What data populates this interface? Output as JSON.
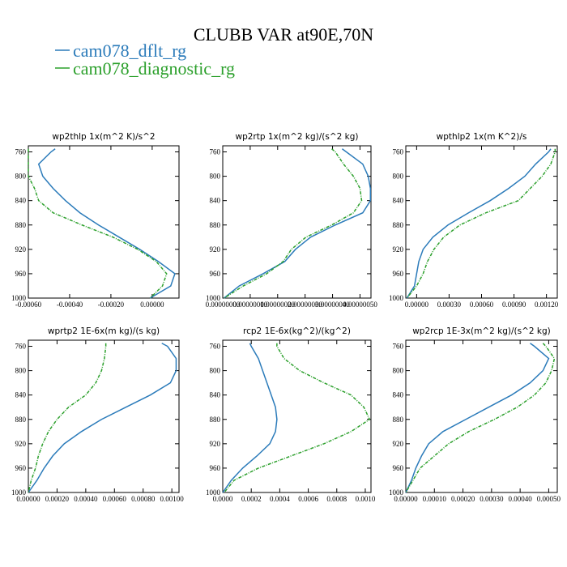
{
  "title": "CLUBB VAR at90E,70N",
  "chart_data": [
    {
      "type": "line",
      "title": "wp2thlp  1x(m^2 K)/s^2",
      "y": [
        755,
        760,
        780,
        800,
        820,
        840,
        860,
        880,
        900,
        920,
        940,
        960,
        980,
        1000
      ],
      "ylim": [
        1000,
        750
      ],
      "yticks": [
        760,
        800,
        840,
        880,
        920,
        960,
        1000
      ],
      "xlim": [
        -0.0006,
        0.00013
      ],
      "xticks": [
        {
          "value": -0.0006,
          "label": "-0.00060"
        },
        {
          "value": -0.0004,
          "label": "-0.00040"
        },
        {
          "value": -0.0002,
          "label": "-0.00020"
        },
        {
          "value": 0,
          "label": "0.00000"
        }
      ],
      "series": [
        {
          "name": "cam078_dflt_rg",
          "color": "#2b7bba",
          "line_style": "solid",
          "values": [
            -0.00047,
            -0.00049,
            -0.00055,
            -0.00053,
            -0.00048,
            -0.00042,
            -0.00035,
            -0.00026,
            -0.00016,
            -6e-05,
            3e-05,
            0.00011,
            9e-05,
            -1e-05
          ]
        },
        {
          "name": "cam078_diagnostic_rg",
          "color": "#2ca02c",
          "line_style": "dashed",
          "values": [
            -0.0006,
            -0.0006,
            -0.0006,
            -0.0006,
            -0.00057,
            -0.00055,
            -0.00048,
            -0.00034,
            -0.00019,
            -7e-05,
            2e-05,
            7e-05,
            5e-05,
            -1e-05
          ]
        }
      ]
    },
    {
      "type": "line",
      "title": "wp2rtp  1x(m^2 kg)/(s^2 kg)",
      "y": [
        755,
        760,
        780,
        800,
        820,
        840,
        860,
        880,
        900,
        920,
        940,
        960,
        980,
        1000
      ],
      "ylim": [
        1000,
        750
      ],
      "yticks": [
        760,
        800,
        840,
        880,
        920,
        960,
        1000
      ],
      "xlim": [
        0,
        5.4e-07
      ],
      "xticks": [
        {
          "value": 0,
          "label": "0.00000000"
        },
        {
          "value": 1e-07,
          "label": "0.00000010"
        },
        {
          "value": 2e-07,
          "label": "0.00000020"
        },
        {
          "value": 3e-07,
          "label": "0.00000030"
        },
        {
          "value": 4e-07,
          "label": "0.00000040"
        },
        {
          "value": 5e-07,
          "label": "0.00000050"
        }
      ],
      "series": [
        {
          "name": "cam078_dflt_rg",
          "color": "#2b7bba",
          "line_style": "solid",
          "values": [
            4.35e-07,
            4.5e-07,
            5.1e-07,
            5.3e-07,
            5.38e-07,
            5.38e-07,
            5.1e-07,
            4.1e-07,
            3.2e-07,
            2.65e-07,
            2.26e-07,
            1.47e-07,
            6e-08,
            5e-09
          ]
        },
        {
          "name": "cam078_diagnostic_rg",
          "color": "#2ca02c",
          "line_style": "dashed",
          "values": [
            3.97e-07,
            4.1e-07,
            4.4e-07,
            4.76e-07,
            5e-07,
            5.06e-07,
            4.76e-07,
            3.97e-07,
            3.03e-07,
            2.5e-07,
            2.2e-07,
            1.6e-07,
            7.5e-08,
            5e-09
          ]
        }
      ]
    },
    {
      "type": "line",
      "title": "wpthlp2  1x(m K^2)/s",
      "y": [
        755,
        760,
        780,
        800,
        820,
        840,
        860,
        880,
        900,
        920,
        940,
        960,
        980,
        1000
      ],
      "ylim": [
        1000,
        750
      ],
      "yticks": [
        760,
        800,
        840,
        880,
        920,
        960,
        1000
      ],
      "xlim": [
        -0.0001,
        0.0013
      ],
      "xticks": [
        {
          "value": 0,
          "label": "0.00000"
        },
        {
          "value": 0.0003,
          "label": "0.00030"
        },
        {
          "value": 0.0006,
          "label": "0.00060"
        },
        {
          "value": 0.0009,
          "label": "0.00090"
        },
        {
          "value": 0.0012,
          "label": "0.00120"
        }
      ],
      "series": [
        {
          "name": "cam078_dflt_rg",
          "color": "#2b7bba",
          "line_style": "solid",
          "values": [
            0.00124,
            0.00122,
            0.0011,
            0.001,
            0.00085,
            0.00068,
            0.00048,
            0.00029,
            0.00015,
            6e-05,
            2e-05,
            0,
            -2e-05,
            -9e-05
          ]
        },
        {
          "name": "cam078_diagnostic_rg",
          "color": "#2ca02c",
          "line_style": "dashed",
          "values": [
            0.00128,
            0.00128,
            0.00124,
            0.00116,
            0.00105,
            0.00094,
            0.00064,
            0.0004,
            0.00025,
            0.00016,
            0.0001,
            6e-05,
            0,
            -9e-05
          ]
        }
      ]
    },
    {
      "type": "line",
      "title": "wprtp2  1E-6x(m kg)/(s kg)",
      "y": [
        755,
        760,
        780,
        800,
        820,
        840,
        860,
        880,
        900,
        920,
        940,
        960,
        980,
        1000
      ],
      "ylim": [
        1000,
        750
      ],
      "yticks": [
        760,
        800,
        840,
        880,
        920,
        960,
        1000
      ],
      "xlim": [
        0,
        0.00105
      ],
      "xticks": [
        {
          "value": 0,
          "label": "0.00000"
        },
        {
          "value": 0.0002,
          "label": "0.00020"
        },
        {
          "value": 0.0004,
          "label": "0.00040"
        },
        {
          "value": 0.0006,
          "label": "0.00060"
        },
        {
          "value": 0.0008,
          "label": "0.00080"
        },
        {
          "value": 0.001,
          "label": "0.00100"
        }
      ],
      "series": [
        {
          "name": "cam078_dflt_rg",
          "color": "#2b7bba",
          "line_style": "solid",
          "values": [
            0.00093,
            0.00097,
            0.00103,
            0.00103,
            0.00099,
            0.00085,
            0.00068,
            0.00051,
            0.00037,
            0.00025,
            0.00017,
            0.00011,
            6e-05,
            0
          ]
        },
        {
          "name": "cam078_diagnostic_rg",
          "color": "#2ca02c",
          "line_style": "dashed",
          "values": [
            0.00054,
            0.00054,
            0.00053,
            0.00051,
            0.00047,
            0.0004,
            0.00028,
            0.0002,
            0.00014,
            0.0001,
            7e-05,
            5e-05,
            2e-05,
            0
          ]
        }
      ]
    },
    {
      "type": "line",
      "title": "rcp2  1E-6x(kg^2)/(kg^2)",
      "y": [
        755,
        760,
        780,
        800,
        820,
        840,
        860,
        880,
        900,
        920,
        940,
        960,
        980,
        1000
      ],
      "ylim": [
        1000,
        750
      ],
      "yticks": [
        760,
        800,
        840,
        880,
        920,
        960,
        1000
      ],
      "xlim": [
        0,
        0.00104
      ],
      "xticks": [
        {
          "value": 0,
          "label": "0.0000"
        },
        {
          "value": 0.0002,
          "label": "0.0002"
        },
        {
          "value": 0.0004,
          "label": "0.0004"
        },
        {
          "value": 0.0006,
          "label": "0.0006"
        },
        {
          "value": 0.0008,
          "label": "0.0008"
        },
        {
          "value": 0.001,
          "label": "0.0010"
        }
      ],
      "series": [
        {
          "name": "cam078_dflt_rg",
          "color": "#2b7bba",
          "line_style": "solid",
          "values": [
            0.00019,
            0.0002,
            0.00025,
            0.00028,
            0.00031,
            0.00034,
            0.00037,
            0.00038,
            0.00037,
            0.00033,
            0.00024,
            0.00014,
            6e-05,
            0
          ]
        },
        {
          "name": "cam078_diagnostic_rg",
          "color": "#2ca02c",
          "line_style": "dashed",
          "values": [
            0.00038,
            0.00038,
            0.00043,
            0.00054,
            0.00071,
            0.0009,
            0.00099,
            0.00103,
            0.0009,
            0.00071,
            0.00048,
            0.00025,
            8e-05,
            1e-05
          ]
        }
      ]
    },
    {
      "type": "line",
      "title": "wp2rcp  1E-3x(m^2 kg)/(s^2 kg)",
      "y": [
        755,
        760,
        780,
        800,
        820,
        840,
        860,
        880,
        900,
        920,
        940,
        960,
        980,
        1000
      ],
      "ylim": [
        1000,
        750
      ],
      "yticks": [
        760,
        800,
        840,
        880,
        920,
        960,
        1000
      ],
      "xlim": [
        0,
        0.00053
      ],
      "xticks": [
        {
          "value": 0,
          "label": "0.00000"
        },
        {
          "value": 0.0001,
          "label": "0.00010"
        },
        {
          "value": 0.0002,
          "label": "0.00020"
        },
        {
          "value": 0.0003,
          "label": "0.00030"
        },
        {
          "value": 0.0004,
          "label": "0.00040"
        },
        {
          "value": 0.0005,
          "label": "0.00050"
        }
      ],
      "series": [
        {
          "name": "cam078_dflt_rg",
          "color": "#2b7bba",
          "line_style": "solid",
          "values": [
            0.000435,
            0.00045,
            0.0005,
            0.00048,
            0.000435,
            0.00037,
            0.00029,
            0.00021,
            0.00013,
            8e-05,
            5.5e-05,
            3.5e-05,
            2e-05,
            0
          ]
        },
        {
          "name": "cam078_diagnostic_rg",
          "color": "#2ca02c",
          "line_style": "dashed",
          "values": [
            0.00048,
            0.00049,
            0.00052,
            0.00051,
            0.00049,
            0.00045,
            0.00039,
            0.00031,
            0.00022,
            0.00015,
            0.0001,
            5e-05,
            2.5e-05,
            0
          ]
        }
      ]
    }
  ]
}
